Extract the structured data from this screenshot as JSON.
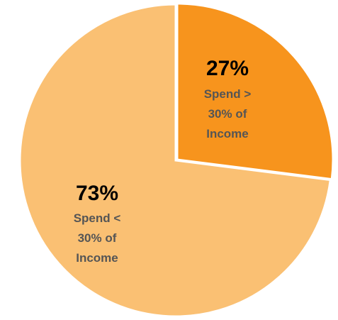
{
  "chart_data": {
    "type": "pie",
    "title": "",
    "slices": [
      {
        "value": 27,
        "percent_label": "27%",
        "description_lines": [
          "Spend >",
          "30% of",
          "Income"
        ],
        "color": "#f7941d"
      },
      {
        "value": 73,
        "percent_label": "73%",
        "description_lines": [
          "Spend <",
          "30% of",
          "Income"
        ],
        "color": "#fac073"
      }
    ],
    "start_angle_deg": 0,
    "direction": "clockwise",
    "legend": "none",
    "label_color": "#000000",
    "description_color": "#555555"
  }
}
